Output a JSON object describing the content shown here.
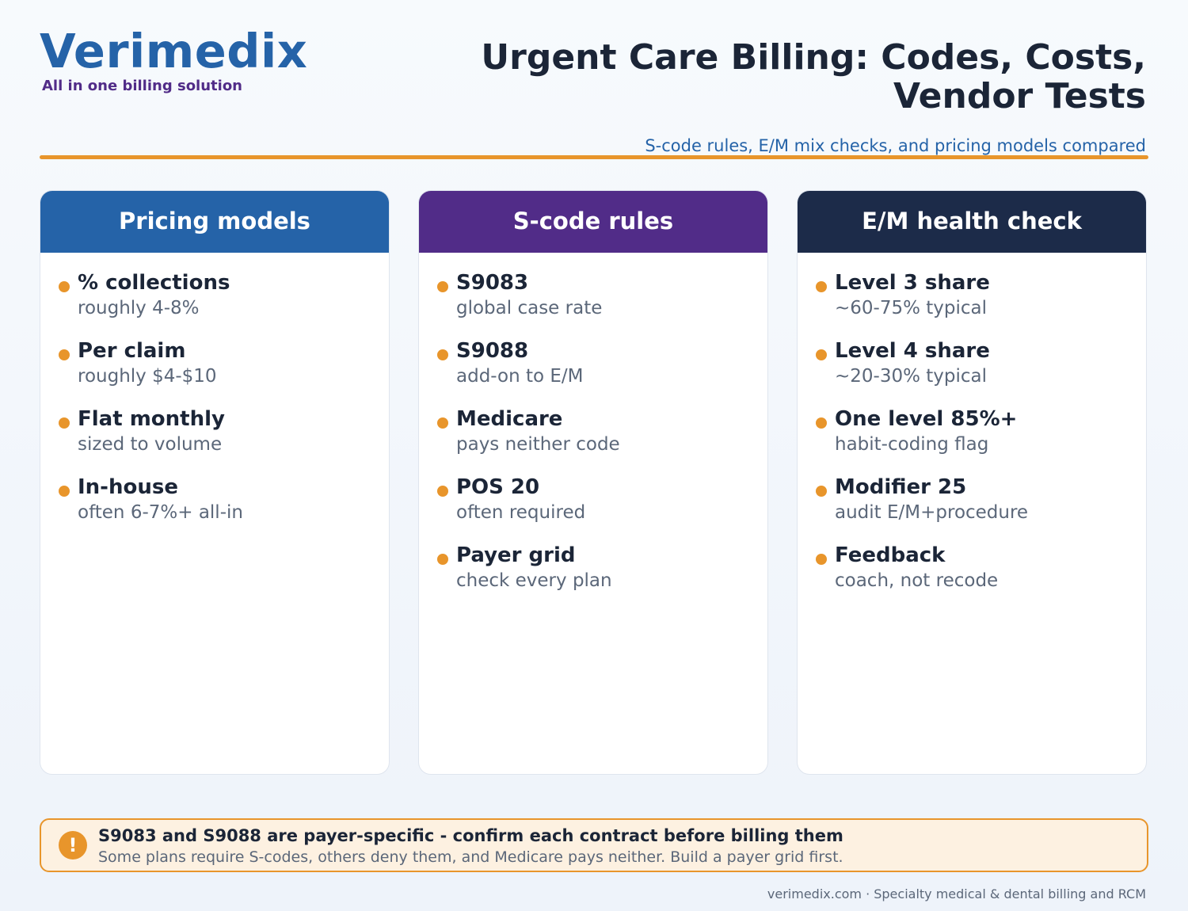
{
  "brand": {
    "logo_text": "Verimedix",
    "tagline": "All in one billing solution"
  },
  "header": {
    "title_line1": "Urgent Care Billing: Codes, Costs,",
    "title_line2": "Vendor Tests",
    "subtitle": "S-code rules, E/M mix checks, and pricing models compared"
  },
  "colors": {
    "brand_blue": "#2563a8",
    "brand_purple": "#512c88",
    "navy": "#1c2b49",
    "accent_orange": "#e8952b"
  },
  "cards": [
    {
      "title": "Pricing models",
      "items": [
        {
          "title": "% collections",
          "detail": "roughly 4-8%"
        },
        {
          "title": "Per claim",
          "detail": "roughly $4-$10"
        },
        {
          "title": "Flat monthly",
          "detail": "sized to volume"
        },
        {
          "title": "In-house",
          "detail": "often 6-7%+ all-in"
        }
      ]
    },
    {
      "title": "S-code rules",
      "items": [
        {
          "title": "S9083",
          "detail": "global case rate"
        },
        {
          "title": "S9088",
          "detail": "add-on to E/M"
        },
        {
          "title": "Medicare",
          "detail": "pays neither code"
        },
        {
          "title": "POS 20",
          "detail": "often required"
        },
        {
          "title": "Payer grid",
          "detail": "check every plan"
        }
      ]
    },
    {
      "title": "E/M health check",
      "items": [
        {
          "title": "Level 3 share",
          "detail": "~60-75% typical"
        },
        {
          "title": "Level 4 share",
          "detail": "~20-30% typical"
        },
        {
          "title": "One level 85%+",
          "detail": "habit-coding flag"
        },
        {
          "title": "Modifier 25",
          "detail": "audit E/M+procedure"
        },
        {
          "title": "Feedback",
          "detail": "coach, not recode"
        }
      ]
    }
  ],
  "alert": {
    "icon": "exclamation-icon",
    "icon_glyph": "!",
    "title": "S9083 and S9088 are payer-specific - confirm each contract before billing them",
    "body": "Some plans require S-codes, others deny them, and Medicare pays neither. Build a payer grid first."
  },
  "footer": {
    "text": "verimedix.com · Specialty medical & dental billing and RCM"
  }
}
